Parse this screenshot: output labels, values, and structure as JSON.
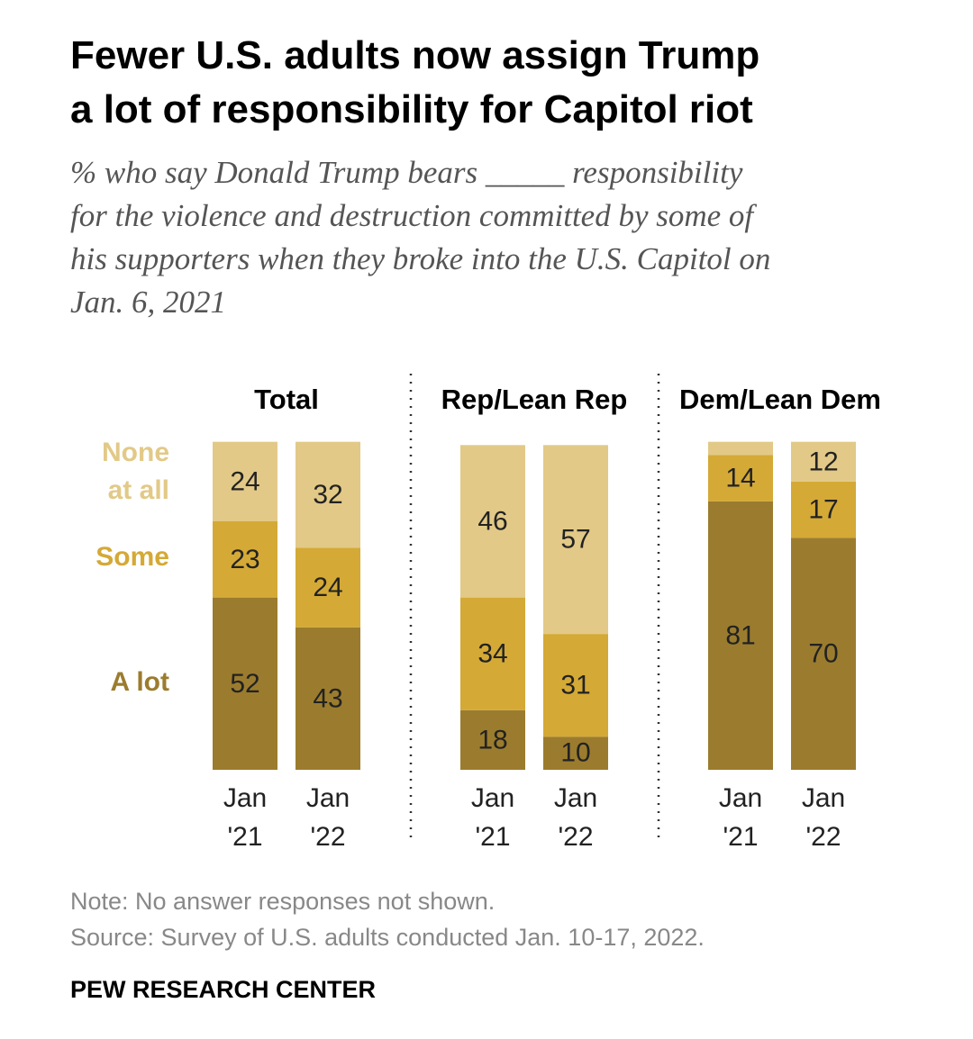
{
  "title_lines": [
    "Fewer U.S. adults now assign Trump",
    "a lot of responsibility for Capitol riot"
  ],
  "subtitle_lines": [
    "% who say Donald Trump bears _____ responsibility",
    "for the violence and destruction committed by some of",
    "his supporters when they broke into the U.S. Capitol on",
    "Jan. 6, 2021"
  ],
  "colors": {
    "a_lot": "#9b7c2e",
    "some": "#d4a936",
    "none": "#e2c987"
  },
  "chart_data": {
    "type": "bar",
    "stacked": true,
    "categories": [
      "Jan '21",
      "Jan '22"
    ],
    "category_lines": [
      [
        "Jan",
        "'21"
      ],
      [
        "Jan",
        "'22"
      ]
    ],
    "legend": [
      {
        "key": "none",
        "lines": [
          "None",
          "at all"
        ]
      },
      {
        "key": "some",
        "lines": [
          "Some"
        ]
      },
      {
        "key": "a_lot",
        "lines": [
          "A lot"
        ]
      }
    ],
    "panels": [
      {
        "title": "Total",
        "bars": [
          {
            "category": "Jan '21",
            "a_lot": 52,
            "some": 23,
            "none": 24
          },
          {
            "category": "Jan '22",
            "a_lot": 43,
            "some": 24,
            "none": 32
          }
        ]
      },
      {
        "title": "Rep/Lean Rep",
        "bars": [
          {
            "category": "Jan '21",
            "a_lot": 18,
            "some": 34,
            "none": 46
          },
          {
            "category": "Jan '22",
            "a_lot": 10,
            "some": 31,
            "none": 57
          }
        ]
      },
      {
        "title": "Dem/Lean Dem",
        "bars": [
          {
            "category": "Jan '21",
            "a_lot": 81,
            "some": 14,
            "none": 4,
            "none_label": ""
          },
          {
            "category": "Jan '22",
            "a_lot": 70,
            "some": 17,
            "none": 12
          }
        ]
      }
    ]
  },
  "note": "Note: No answer responses not shown.",
  "source": "Source: Survey of U.S. adults conducted Jan. 10-17, 2022.",
  "brand": "PEW RESEARCH CENTER"
}
